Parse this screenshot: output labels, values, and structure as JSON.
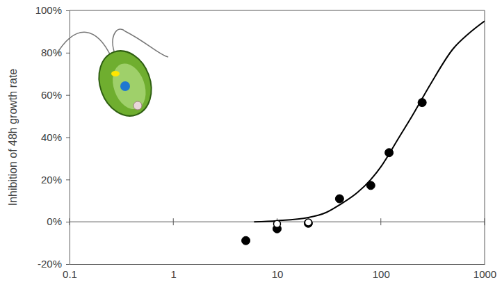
{
  "chart_data": {
    "type": "scatter",
    "y_label": "Inhibition of 48h growth rate",
    "log": "x",
    "grid": false,
    "xlim": [
      0.1,
      1000
    ],
    "xticks": [
      0.1,
      1,
      10,
      100,
      1000
    ],
    "ylim": [
      -20,
      100
    ],
    "yticks": [
      {
        "value": -20,
        "label": "-20%"
      },
      {
        "value": 0,
        "label": "0%"
      },
      {
        "value": 20,
        "label": "20%"
      },
      {
        "value": 40,
        "label": "40%"
      },
      {
        "value": 60,
        "label": "60%"
      },
      {
        "value": 80,
        "label": "80%"
      },
      {
        "value": 100,
        "label": "100%"
      }
    ],
    "series": [
      {
        "type": "line",
        "color": "#000000",
        "line_style": "solid",
        "x": [
          6,
          10,
          20,
          30,
          40,
          60,
          80,
          100,
          150,
          200,
          300,
          500,
          700,
          1000
        ],
        "values": [
          0,
          0.5,
          2,
          4.5,
          8,
          14,
          20,
          26,
          40,
          50,
          65,
          82,
          89,
          95
        ]
      },
      {
        "type": "scatter",
        "color": "#000000",
        "marker": "filled",
        "x": [
          5,
          10,
          20,
          40,
          80,
          120,
          250
        ],
        "values": [
          -8.9,
          -3.3,
          -0.7,
          10.9,
          17.2,
          32.7,
          56.4
        ]
      },
      {
        "type": "scatter",
        "color": "#000000",
        "marker": "open",
        "x": [
          10,
          20
        ],
        "values": [
          -1,
          -0.3
        ]
      }
    ]
  }
}
